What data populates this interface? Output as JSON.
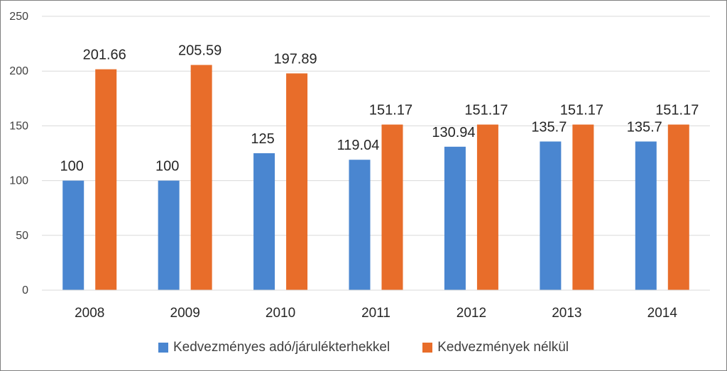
{
  "chart_data": {
    "type": "bar",
    "categories": [
      "2008",
      "2009",
      "2010",
      "2011",
      "2012",
      "2013",
      "2014"
    ],
    "series": [
      {
        "name": "Kedvezményes adó/járulékterhekkel",
        "color": "#4a86d0",
        "values": [
          100,
          100,
          125,
          119.04,
          130.94,
          135.7,
          135.7
        ],
        "labels": [
          "100",
          "100",
          "125",
          "119.04",
          "130.94",
          "135.7",
          "135.7"
        ]
      },
      {
        "name": "Kedvezmények nélkül",
        "color": "#e86d2a",
        "values": [
          201.66,
          205.59,
          197.89,
          151.17,
          151.17,
          151.17,
          151.17
        ],
        "labels": [
          "201.66",
          "205.59",
          "197.89",
          "151.17",
          "151.17",
          "151.17",
          "151.17"
        ]
      }
    ],
    "yticks": [
      "0",
      "50",
      "100",
      "150",
      "200",
      "250"
    ],
    "ylim": [
      0,
      250
    ],
    "grid": true,
    "legend_position": "bottom"
  }
}
